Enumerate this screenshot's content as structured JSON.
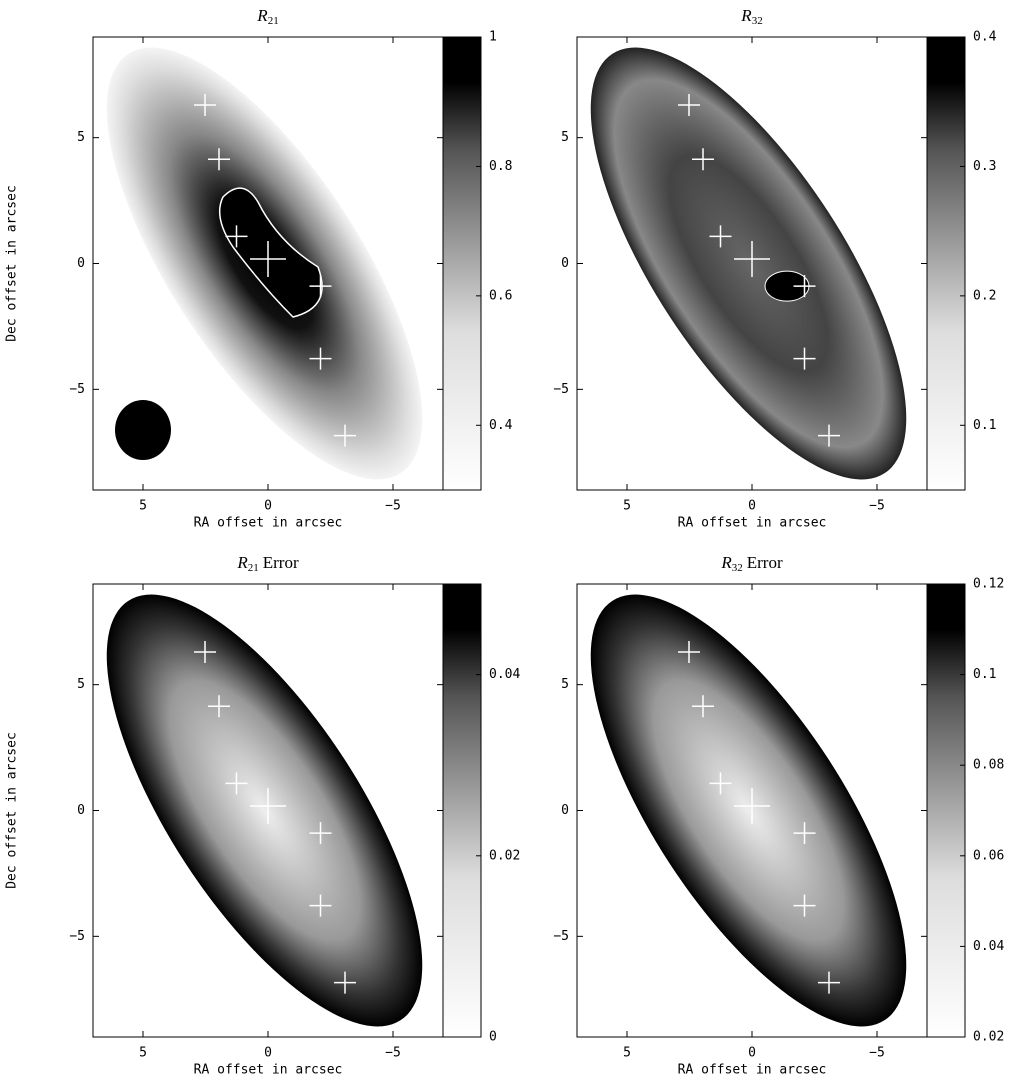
{
  "chart_data": [
    {
      "type": "image",
      "title": "R",
      "title_subscript": "21",
      "xlabel": "RA offset in arcsec",
      "ylabel": "Dec offset in arcsec",
      "xlim": [
        7,
        -7
      ],
      "xticks": [
        5,
        0,
        {
          "value": -5,
          "label": "−5"
        }
      ],
      "ylim": [
        -9,
        9
      ],
      "yticks": [
        {
          "value": -5,
          "label": "−5"
        },
        0,
        5
      ],
      "colorbar": {
        "lim": [
          0.3,
          1
        ],
        "ticks": [
          0.4,
          0.6,
          0.8,
          1
        ]
      }
    },
    {
      "type": "image",
      "title": "R",
      "title_subscript": "32",
      "xlabel": "RA offset in arcsec",
      "xlim": [
        7,
        -7
      ],
      "xticks": [
        5,
        0,
        {
          "value": -5,
          "label": "−5"
        }
      ],
      "ylim": [
        -9,
        9
      ],
      "yticks": [
        {
          "value": -5,
          "label": "−5"
        },
        0,
        5
      ],
      "colorbar": {
        "lim": [
          0.05,
          0.4
        ],
        "ticks": [
          0.1,
          0.2,
          0.3,
          0.4
        ]
      }
    },
    {
      "type": "image",
      "title": "R",
      "title_subscript": "21",
      "title_suffix": "Error",
      "xlabel": "RA offset in arcsec",
      "ylabel": "Dec offset in arcsec",
      "xlim": [
        7,
        -7
      ],
      "xticks": [
        5,
        0,
        {
          "value": -5,
          "label": "−5"
        }
      ],
      "ylim": [
        -9,
        9
      ],
      "yticks": [
        {
          "value": -5,
          "label": "−5"
        },
        0,
        5
      ],
      "colorbar": {
        "lim": [
          0,
          0.05
        ],
        "ticks": [
          0,
          0.02,
          0.04
        ]
      }
    },
    {
      "type": "image",
      "title": "R",
      "title_subscript": "32",
      "title_suffix": "Error",
      "xlabel": "RA offset in arcsec",
      "xlim": [
        7,
        -7
      ],
      "xticks": [
        5,
        0,
        {
          "value": -5,
          "label": "−5"
        }
      ],
      "ylim": [
        -9,
        9
      ],
      "yticks": [
        {
          "value": -5,
          "label": "−5"
        },
        0,
        5
      ],
      "colorbar": {
        "lim": [
          0.02,
          0.12
        ],
        "ticks": [
          0.02,
          0.04,
          0.06,
          0.08,
          0.1,
          0.12
        ]
      }
    }
  ]
}
